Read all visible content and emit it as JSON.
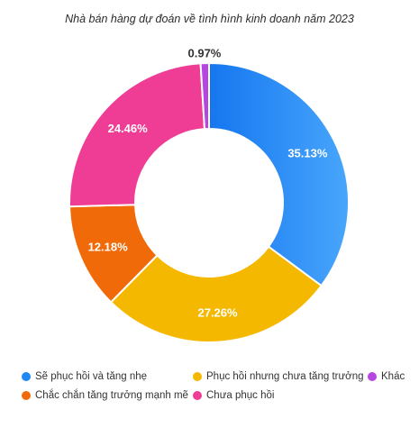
{
  "chart_data": {
    "type": "pie",
    "title": "Nhà bán hàng dự đoán về tình hình kinh doanh năm 2023",
    "donut": true,
    "legend_position": "bottom",
    "categories": [
      "Sẽ phục hồi và tăng nhẹ",
      "Phục hồi nhưng chưa tăng trưởng",
      "Chắc chắn tăng trưởng mạnh mẽ",
      "Chưa phục hồi",
      "Khác"
    ],
    "values": [
      35.13,
      27.26,
      12.18,
      24.46,
      0.97
    ],
    "value_labels": [
      "35.13%",
      "27.26%",
      "12.18%",
      "24.46%",
      "0.97%"
    ],
    "colors": [
      "#1e88f5",
      "#f5b800",
      "#f06a0a",
      "#ef3d95",
      "#b547e0"
    ],
    "legend": [
      [
        {
          "label": "Sẽ phục hồi và tăng nhẹ",
          "color": "#1e88f5"
        },
        {
          "label": "Phục hồi nhưng chưa tăng trưởng",
          "color": "#f5b800"
        },
        {
          "label": "Khác",
          "color": "#b547e0"
        }
      ],
      [
        {
          "label": "Chắc chắn tăng trưởng mạnh mẽ",
          "color": "#f06a0a"
        },
        {
          "label": "Chưa phục hồi",
          "color": "#ef3d95"
        }
      ]
    ]
  }
}
